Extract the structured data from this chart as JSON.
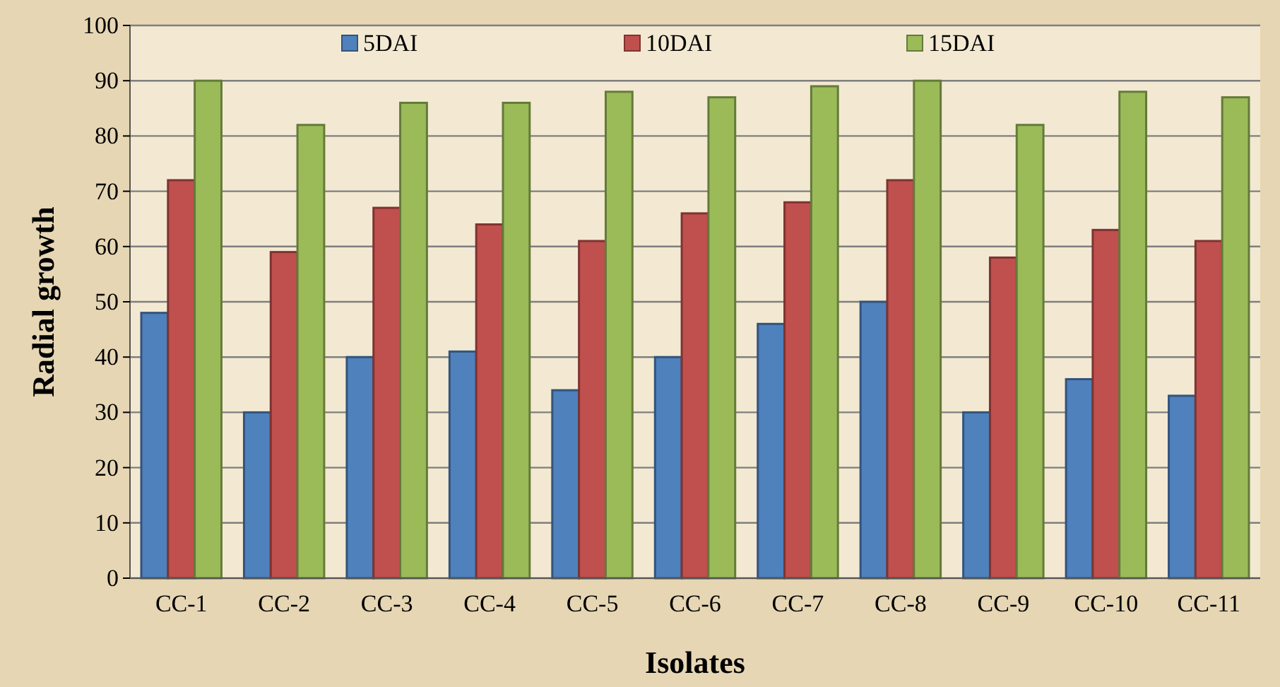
{
  "chart_data": {
    "type": "bar",
    "xlabel": "Isolates",
    "ylabel": "Radial growth",
    "categories": [
      "CC-1",
      "CC-2",
      "CC-3",
      "CC-4",
      "CC-5",
      "CC-6",
      "CC-7",
      "CC-8",
      "CC-9",
      "CC-10",
      "CC-11"
    ],
    "series": [
      {
        "name": "5DAI",
        "color": "#4f81bd",
        "values": [
          48,
          30,
          40,
          41,
          34,
          40,
          46,
          50,
          30,
          36,
          33
        ]
      },
      {
        "name": "10DAI",
        "color": "#c0504d",
        "values": [
          72,
          59,
          67,
          64,
          61,
          66,
          68,
          72,
          58,
          63,
          61
        ]
      },
      {
        "name": "15DAI",
        "color": "#9bbb59",
        "values": [
          90,
          82,
          86,
          86,
          88,
          87,
          89,
          90,
          82,
          88,
          87
        ]
      }
    ],
    "ylim": [
      0,
      100
    ],
    "yticks": [
      0,
      10,
      20,
      30,
      40,
      50,
      60,
      70,
      80,
      90,
      100
    ],
    "grid": "y",
    "legend": "top"
  }
}
